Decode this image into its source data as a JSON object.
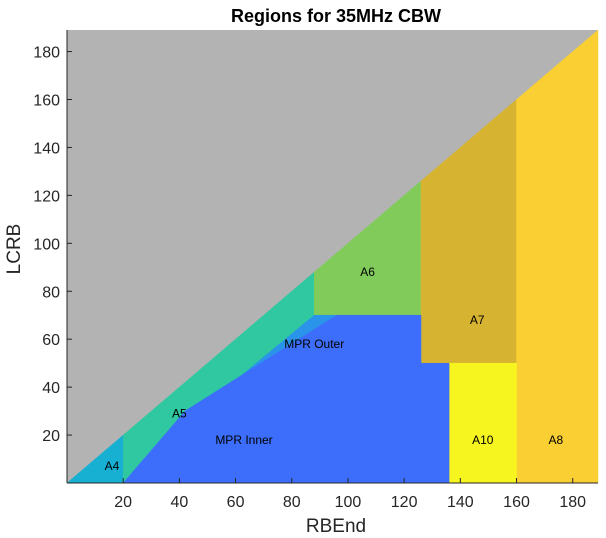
{
  "chart_data": {
    "type": "heatmap",
    "title": "Regions for 35MHz CBW",
    "xlabel": "RBEnd",
    "ylabel": "LCRB",
    "xlim": [
      0,
      189
    ],
    "ylim": [
      0,
      189
    ],
    "xticks": [
      20,
      40,
      60,
      80,
      100,
      120,
      140,
      160,
      180
    ],
    "yticks": [
      20,
      40,
      60,
      80,
      100,
      120,
      140,
      160,
      180
    ],
    "grid": false,
    "background_color": "#b3b3b3",
    "regions": [
      {
        "name": "A4",
        "color": "#17b0d3",
        "polygon": [
          [
            0,
            0
          ],
          [
            20,
            0
          ],
          [
            20,
            20
          ]
        ],
        "label_at": [
          16,
          7
        ]
      },
      {
        "name": "A5",
        "color": "#2fc8a0",
        "polygon": [
          [
            20,
            0
          ],
          [
            20,
            20
          ],
          [
            88,
            88
          ],
          [
            88,
            70
          ],
          [
            55,
            38
          ],
          [
            42,
            30
          ],
          [
            20,
            0
          ]
        ],
        "label_at": [
          40,
          29
        ]
      },
      {
        "name": "A6",
        "color": "#80cb5a",
        "polygon": [
          [
            88,
            70
          ],
          [
            88,
            88
          ],
          [
            126,
            126
          ],
          [
            126,
            70
          ]
        ],
        "label_at": [
          107,
          88
        ]
      },
      {
        "name": "A7",
        "color": "#d6b431",
        "polygon": [
          [
            126,
            50
          ],
          [
            126,
            126
          ],
          [
            160,
            160
          ],
          [
            160,
            50
          ]
        ],
        "label_at": [
          146,
          68
        ]
      },
      {
        "name": "A8",
        "color": "#f9cf33",
        "polygon": [
          [
            160,
            0
          ],
          [
            160,
            160
          ],
          [
            189,
            189
          ],
          [
            189,
            0
          ]
        ],
        "label_at": [
          174,
          18
        ]
      },
      {
        "name": "A10",
        "color": "#f7f520",
        "polygon": [
          [
            136,
            0
          ],
          [
            136,
            50
          ],
          [
            160,
            50
          ],
          [
            160,
            0
          ]
        ],
        "label_at": [
          148,
          18
        ]
      },
      {
        "name": "MPR Outer",
        "color": "#2994e9",
        "polygon": [
          [
            55,
            38
          ],
          [
            88,
            70
          ],
          [
            96,
            70
          ],
          [
            42,
            30
          ]
        ],
        "label_at": [
          88,
          58
        ]
      },
      {
        "name": "MPR Inner",
        "color": "#3d6efb",
        "polygon": [
          [
            20,
            0
          ],
          [
            42,
            30
          ],
          [
            96,
            70
          ],
          [
            126,
            70
          ],
          [
            126,
            50
          ],
          [
            136,
            50
          ],
          [
            136,
            0
          ]
        ],
        "label_at": [
          63,
          18
        ]
      }
    ]
  }
}
